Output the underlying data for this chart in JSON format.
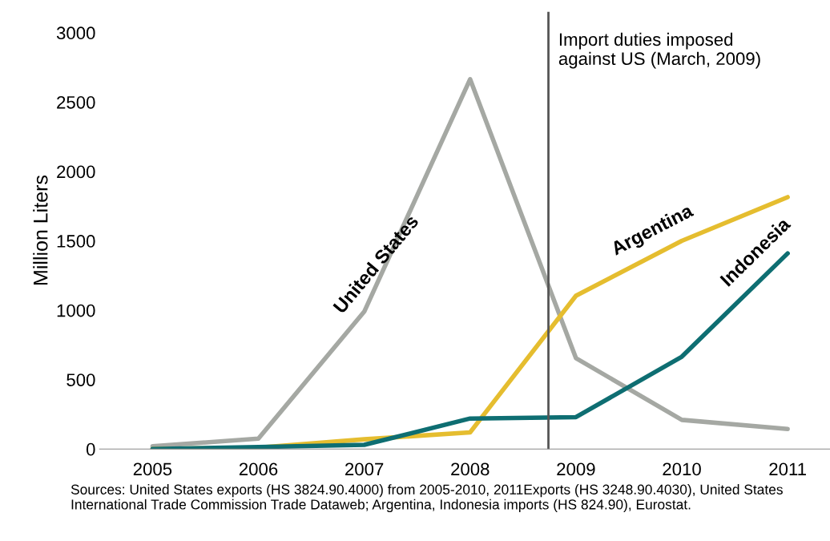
{
  "chart_data": {
    "type": "line",
    "ylabel": "Million Liters",
    "x": [
      2005,
      2006,
      2007,
      2008,
      2009,
      2010,
      2011
    ],
    "series": [
      {
        "name": "United States",
        "color": "#a5a8a3",
        "values": [
          20,
          75,
          990,
          2665,
          655,
          210,
          145
        ]
      },
      {
        "name": "Argentina",
        "color": "#e5bd2f",
        "values": [
          0,
          10,
          70,
          120,
          1105,
          1500,
          1815
        ]
      },
      {
        "name": "Indonesia",
        "color": "#0e6e72",
        "values": [
          0,
          15,
          30,
          220,
          230,
          665,
          1410
        ]
      }
    ],
    "xlim": [
      2004.5,
      2011.4
    ],
    "xticks": [
      2005,
      2006,
      2007,
      2008,
      2009,
      2010,
      2011
    ],
    "ylim": [
      0,
      3150
    ],
    "yticks": [
      0,
      500,
      1000,
      1500,
      2000,
      2500,
      3000
    ],
    "ref_lines": [
      {
        "axis": "x",
        "value": 2008.74,
        "label": "Import duties imposed\nagainst US (March, 2009)",
        "color": "#555555"
      }
    ],
    "grid": false,
    "legend": false,
    "marker": "none",
    "line_style": "solid",
    "annotations": [
      "Sources: United States exports (HS 3824.90.4000) from 2005-2010, 2011Exports (HS 3248.90.4030), United States International Trade Commission Trade Dataweb; Argentina, Indonesia imports (HS 824.90), Eurostat."
    ]
  }
}
